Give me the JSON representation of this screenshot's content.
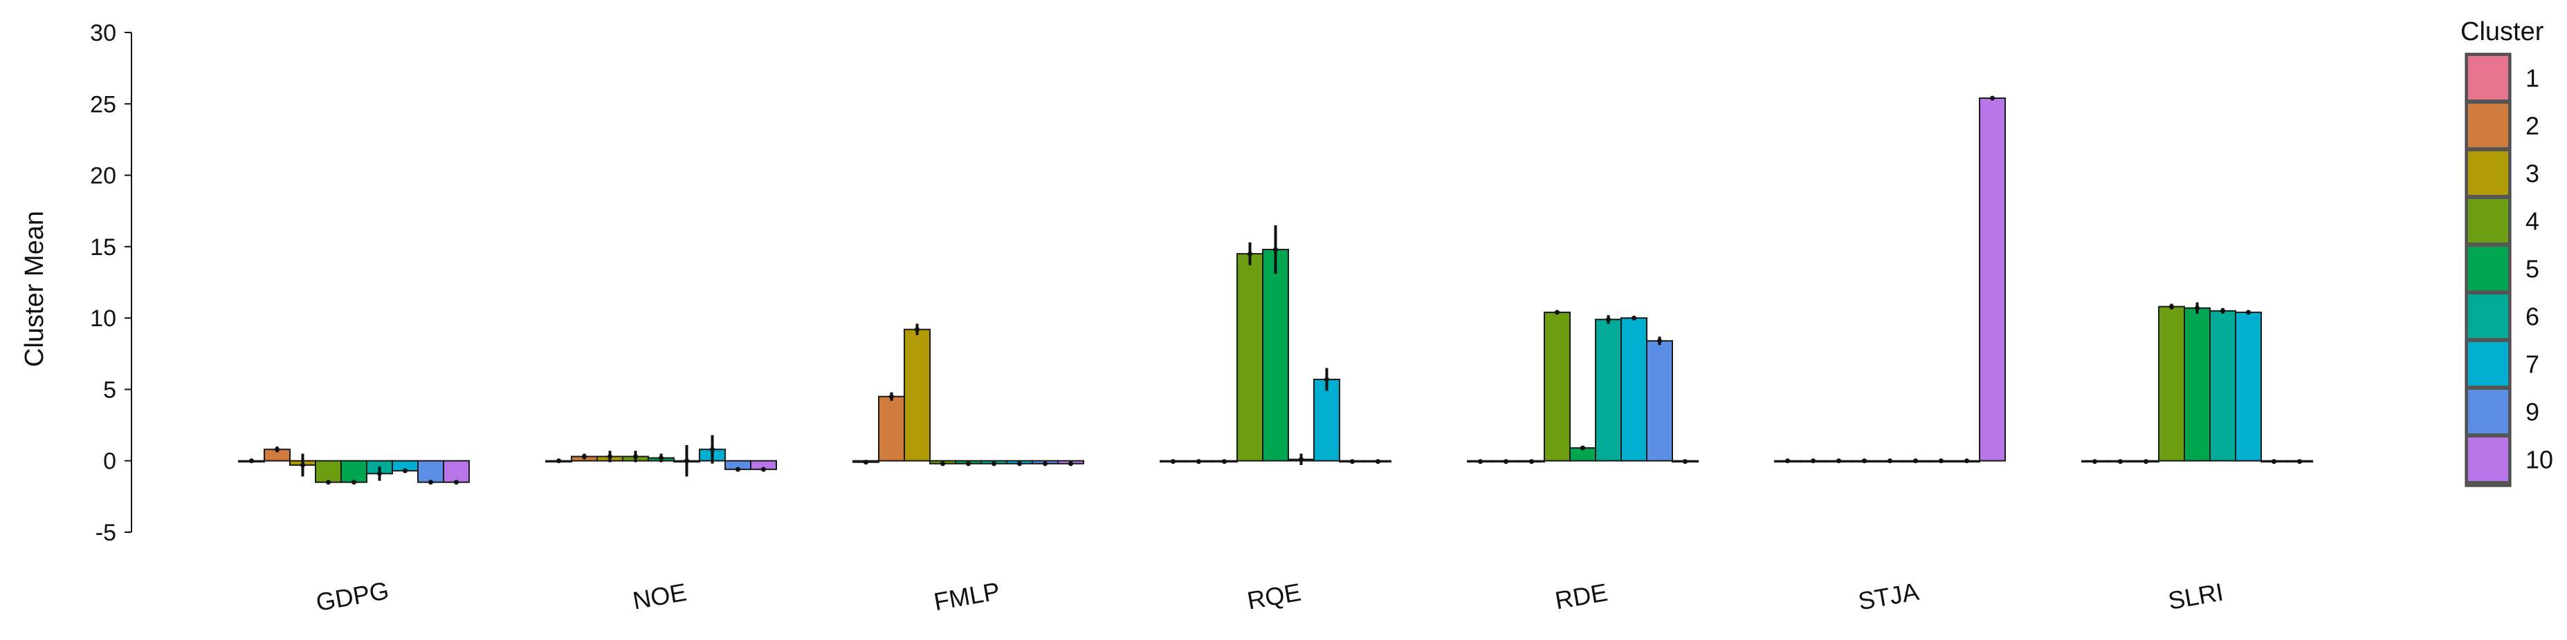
{
  "chart_data": {
    "type": "bar",
    "title": "",
    "xlabel": "",
    "ylabel": "Cluster Mean",
    "ylim": [
      -5,
      30
    ],
    "yticks": [
      "-5",
      "0",
      "5",
      "10",
      "15",
      "20",
      "25",
      "30"
    ],
    "grid": false,
    "legend": {
      "title": "Cluster",
      "placement": "right"
    },
    "categories": [
      "GDPG",
      "NOE",
      "FMLP",
      "RQE",
      "RDE",
      "STJA",
      "SLRI"
    ],
    "series": [
      {
        "name": "1",
        "color": "#e8738f",
        "values": [
          0,
          0,
          -0.1,
          -0.05,
          -0.05,
          0,
          -0.05
        ],
        "errors": [
          0.05,
          0.05,
          0.05,
          0.05,
          0.05,
          0.05,
          0.05
        ]
      },
      {
        "name": "2",
        "color": "#cf7b3e",
        "values": [
          0.8,
          0.3,
          4.5,
          -0.05,
          -0.05,
          0,
          -0.05
        ],
        "errors": [
          0.2,
          0.2,
          0.3,
          0.05,
          0.05,
          0.05,
          0.05
        ]
      },
      {
        "name": "3",
        "color": "#b09a06",
        "values": [
          -0.3,
          0.3,
          9.2,
          -0.05,
          -0.05,
          0,
          -0.05
        ],
        "errors": [
          0.8,
          0.4,
          0.4,
          0.05,
          0.05,
          0.05,
          0.05
        ]
      },
      {
        "name": "4",
        "color": "#6d9e12",
        "values": [
          -1.5,
          0.3,
          -0.2,
          14.5,
          10.4,
          0,
          10.8
        ],
        "errors": [
          0.1,
          0.4,
          0.05,
          0.8,
          0.1,
          0.05,
          0.2
        ]
      },
      {
        "name": "5",
        "color": "#00a550",
        "values": [
          -1.5,
          0.2,
          -0.2,
          14.8,
          0.9,
          0,
          10.7
        ],
        "errors": [
          0.1,
          0.3,
          0.05,
          1.7,
          0.1,
          0.05,
          0.4
        ]
      },
      {
        "name": "6",
        "color": "#00aa96",
        "values": [
          -0.9,
          0.0,
          -0.2,
          0.1,
          9.9,
          0,
          10.5
        ],
        "errors": [
          0.5,
          1.1,
          0.05,
          0.4,
          0.3,
          0.05,
          0.2
        ]
      },
      {
        "name": "7",
        "color": "#00aed0",
        "values": [
          -0.7,
          0.8,
          -0.2,
          5.7,
          10.0,
          0,
          10.4
        ],
        "errors": [
          0.1,
          1.0,
          0.05,
          0.8,
          0.1,
          0.05,
          0.1
        ]
      },
      {
        "name": "9",
        "color": "#5b8fe6",
        "values": [
          -1.5,
          -0.6,
          -0.2,
          -0.05,
          8.4,
          0,
          -0.05
        ],
        "errors": [
          0.1,
          0.1,
          0.05,
          0.05,
          0.3,
          0.05,
          0.05
        ]
      },
      {
        "name": "10",
        "color": "#b875e8",
        "values": [
          -1.5,
          -0.6,
          -0.2,
          -0.05,
          -0.05,
          25.4,
          -0.05
        ],
        "errors": [
          0.1,
          0.1,
          0.05,
          0.05,
          0.05,
          0.1,
          0.05
        ]
      }
    ]
  }
}
